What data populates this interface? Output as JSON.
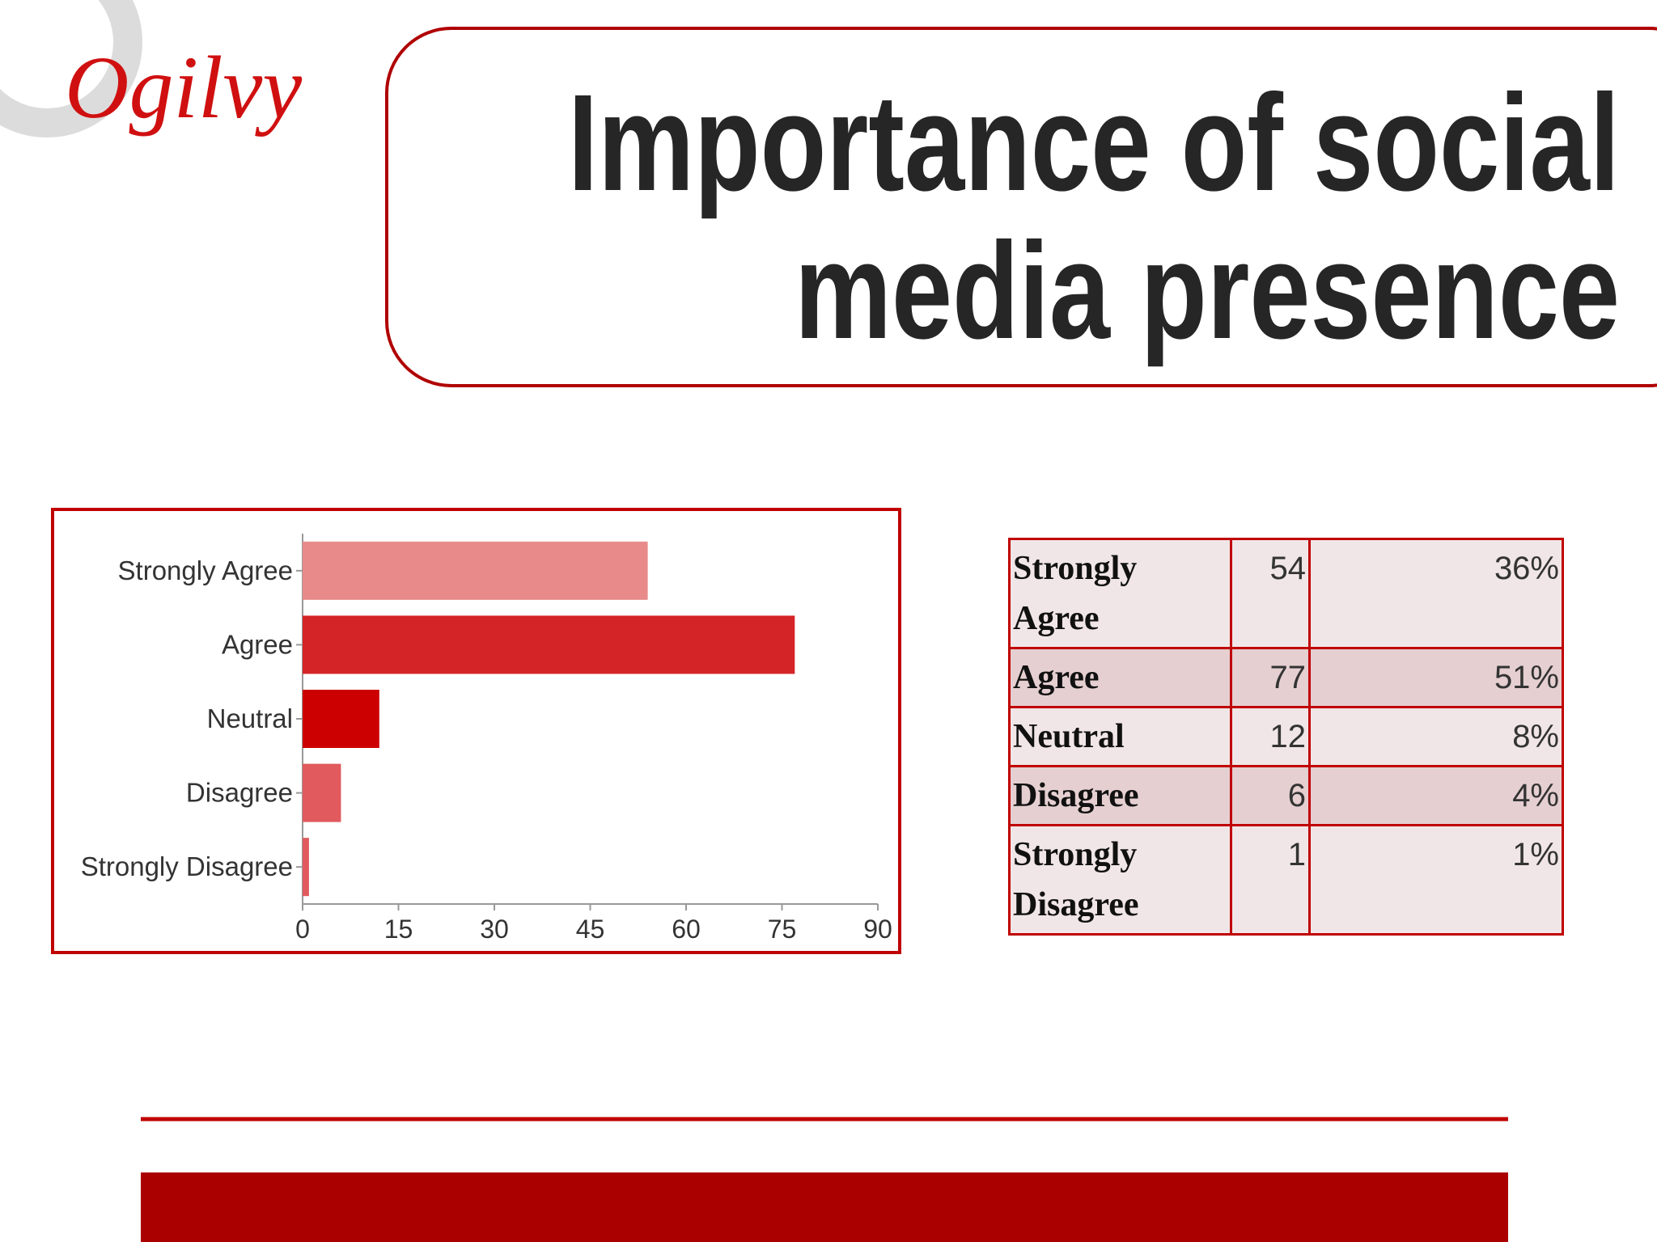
{
  "logo": "Ogilvy",
  "title_lines": [
    "Importance of social",
    "media presence"
  ],
  "chart_data": {
    "type": "bar",
    "orientation": "horizontal",
    "categories": [
      "Strongly Agree",
      "Agree",
      "Neutral",
      "Disagree",
      "Strongly Disagree"
    ],
    "values": [
      54,
      77,
      12,
      6,
      1
    ],
    "colors": [
      "#e88a8a",
      "#d42427",
      "#cc0000",
      "#e05a5e",
      "#e05a5e"
    ],
    "xlim": [
      0,
      90
    ],
    "xticks": [
      0,
      15,
      30,
      45,
      60,
      75,
      90
    ],
    "grid": false
  },
  "table": {
    "rows": [
      [
        "Strongly Agree",
        54,
        "36%"
      ],
      [
        "Agree",
        77,
        "51%"
      ],
      [
        "Neutral",
        12,
        "8%"
      ],
      [
        "Disagree",
        6,
        "4%"
      ],
      [
        "Strongly Disagree",
        1,
        "1%"
      ]
    ]
  }
}
